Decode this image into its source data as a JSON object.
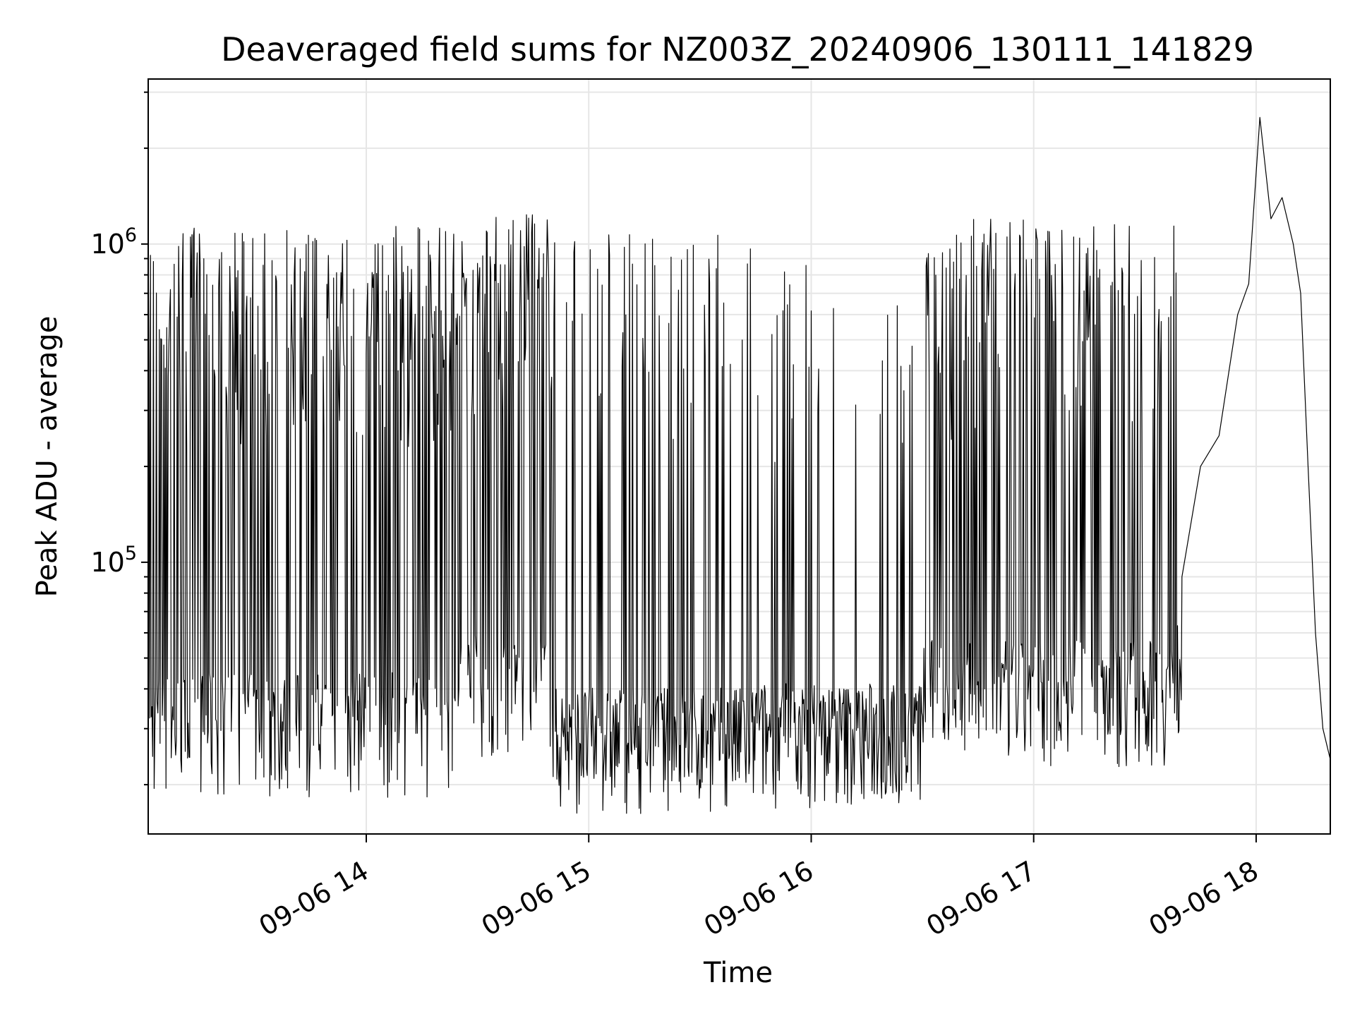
{
  "chart_data": {
    "type": "line",
    "title": "Deaveraged field sums for NZ003Z_20240906_130111_141829",
    "xlabel": "Time",
    "ylabel": "Peak ADU - average",
    "yscale": "log",
    "grid": true,
    "x_range": [
      "2024-09-06 13:01:11",
      "2024-09-06 18:20:00"
    ],
    "ylim": [
      14000,
      3300000
    ],
    "x_ticks": [
      {
        "time": "2024-09-06 14:00",
        "label": "09-06 14"
      },
      {
        "time": "2024-09-06 15:00",
        "label": "09-06 15"
      },
      {
        "time": "2024-09-06 16:00",
        "label": "09-06 16"
      },
      {
        "time": "2024-09-06 17:00",
        "label": "09-06 17"
      },
      {
        "time": "2024-09-06 18:00",
        "label": "09-06 18"
      }
    ],
    "y_ticks": [
      {
        "value": 100000,
        "base": "10",
        "exp": "5"
      },
      {
        "value": 1000000,
        "base": "10",
        "exp": "6"
      }
    ],
    "series": [
      {
        "color": "#000000",
        "segments": [
          {
            "start": "2024-09-06 13:01:11",
            "end": "2024-09-06 14:25:00",
            "low": 30000,
            "high": 1150000,
            "spike_prob": 0.55
          },
          {
            "start": "2024-09-06 14:25:00",
            "end": "2024-09-06 14:50:00",
            "low": 40000,
            "high": 1250000,
            "spike_prob": 0.6
          },
          {
            "start": "2024-09-06 14:50:00",
            "end": "2024-09-06 15:45:00",
            "low": 27000,
            "high": 1100000,
            "spike_prob": 0.18
          },
          {
            "start": "2024-09-06 15:45:00",
            "end": "2024-09-06 16:30:00",
            "low": 28000,
            "high": 900000,
            "spike_prob": 0.12
          },
          {
            "start": "2024-09-06 16:30:00",
            "end": "2024-09-06 17:38:00",
            "low": 38000,
            "high": 1200000,
            "spike_prob": 0.4
          },
          {
            "start": "2024-09-06 17:38:00",
            "end": "2024-09-06 18:20:00",
            "low": 45000,
            "high": 1300000,
            "spike_prob": 0.2
          }
        ],
        "points": [
          {
            "time": "2024-09-06 17:40:00",
            "value": 90000
          },
          {
            "time": "2024-09-06 17:45:00",
            "value": 200000
          },
          {
            "time": "2024-09-06 17:50:00",
            "value": 250000
          },
          {
            "time": "2024-09-06 17:55:00",
            "value": 600000
          },
          {
            "time": "2024-09-06 17:58:00",
            "value": 750000
          },
          {
            "time": "2024-09-06 18:01:00",
            "value": 2500000
          },
          {
            "time": "2024-09-06 18:04:00",
            "value": 1200000
          },
          {
            "time": "2024-09-06 18:07:00",
            "value": 1400000
          },
          {
            "time": "2024-09-06 18:10:00",
            "value": 1000000
          },
          {
            "time": "2024-09-06 18:12:00",
            "value": 700000
          },
          {
            "time": "2024-09-06 18:14:00",
            "value": 200000
          },
          {
            "time": "2024-09-06 18:16:00",
            "value": 60000
          },
          {
            "time": "2024-09-06 18:18:00",
            "value": 30000
          },
          {
            "time": "2024-09-06 18:20:00",
            "value": 24000
          }
        ]
      }
    ]
  }
}
